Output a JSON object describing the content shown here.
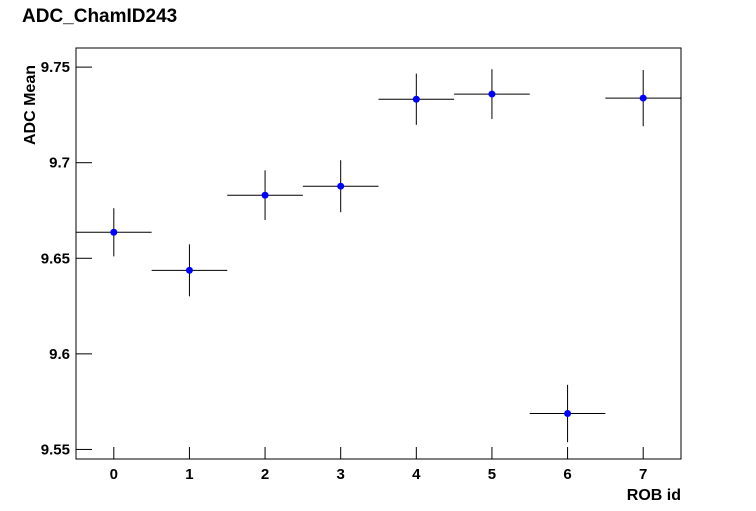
{
  "chart_data": {
    "type": "scatter",
    "title": "ADC_ChamID243",
    "xlabel": "ROB id",
    "ylabel": "ADC Mean",
    "x": [
      0,
      1,
      2,
      3,
      4,
      5,
      6,
      7
    ],
    "values": [
      9.6636,
      9.6437,
      9.683,
      9.6877,
      9.7332,
      9.7359,
      9.5688,
      9.7338
    ],
    "yerr": [
      0.0126,
      0.0136,
      0.013,
      0.0136,
      0.0134,
      0.013,
      0.015,
      0.0147
    ],
    "xerr": [
      0.5,
      0.5,
      0.5,
      0.5,
      0.5,
      0.5,
      0.5,
      0.5
    ],
    "color": "#0000ff",
    "xlim": [
      -0.5,
      7.5
    ],
    "xticks": [
      0,
      1,
      2,
      3,
      4,
      5,
      6,
      7
    ],
    "ylim": [
      9.545,
      9.76
    ],
    "yticks": [
      9.55,
      9.6,
      9.65,
      9.7,
      9.75
    ]
  }
}
